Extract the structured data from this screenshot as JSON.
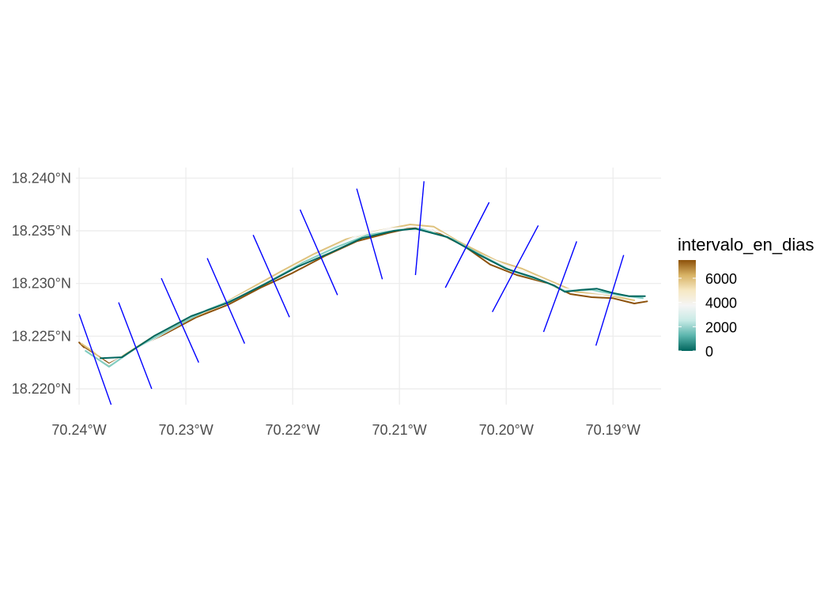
{
  "chart_data": {
    "type": "map",
    "title": "",
    "x_axis": {
      "range_deg_w": [
        70.2403,
        70.1855
      ],
      "ticks": [
        {
          "value": 70.24,
          "label": "70.24°W"
        },
        {
          "value": 70.23,
          "label": "70.23°W"
        },
        {
          "value": 70.22,
          "label": "70.22°W"
        },
        {
          "value": 70.21,
          "label": "70.21°W"
        },
        {
          "value": 70.2,
          "label": "70.20°W"
        },
        {
          "value": 70.19,
          "label": "70.19°W"
        }
      ]
    },
    "y_axis": {
      "range_deg_n": [
        18.2185,
        18.241
      ],
      "ticks": [
        {
          "value": 18.22,
          "label": "18.220°N"
        },
        {
          "value": 18.225,
          "label": "18.225°N"
        },
        {
          "value": 18.23,
          "label": "18.230°N"
        },
        {
          "value": 18.235,
          "label": "18.235°N"
        },
        {
          "value": 18.24,
          "label": "18.240°N"
        }
      ]
    },
    "grid": true,
    "legend": {
      "title": "intervalo_en_dias",
      "position": "right",
      "range": [
        0,
        7500
      ],
      "ticks": [
        {
          "value": 0,
          "label": "0"
        },
        {
          "value": 2000,
          "label": "2000"
        },
        {
          "value": 4000,
          "label": "4000"
        },
        {
          "value": 6000,
          "label": "6000"
        }
      ],
      "colors": [
        "#01665e",
        "#5ab4ac",
        "#c7eae5",
        "#f5f5f5",
        "#f6e8c3",
        "#d8b365",
        "#8c510a"
      ]
    },
    "shorelines": [
      {
        "value": 7000,
        "color": "#8c510a",
        "points": [
          [
            70.24,
            18.2244
          ],
          [
            70.2395,
            18.2239
          ],
          [
            70.2385,
            18.2233
          ],
          [
            70.2372,
            18.2224
          ],
          [
            70.236,
            18.223
          ],
          [
            70.2345,
            18.224
          ],
          [
            70.232,
            18.2252
          ],
          [
            70.229,
            18.2268
          ],
          [
            70.226,
            18.228
          ],
          [
            70.223,
            18.2296
          ],
          [
            70.22,
            18.231
          ],
          [
            70.217,
            18.2326
          ],
          [
            70.214,
            18.234
          ],
          [
            70.211,
            18.2348
          ],
          [
            70.2088,
            18.2353
          ],
          [
            70.2068,
            18.235
          ],
          [
            70.204,
            18.2336
          ],
          [
            70.2015,
            18.2318
          ],
          [
            70.199,
            18.2308
          ],
          [
            70.196,
            18.23
          ],
          [
            70.194,
            18.229
          ],
          [
            70.192,
            18.2287
          ],
          [
            70.19,
            18.2286
          ],
          [
            70.188,
            18.2281
          ],
          [
            70.1868,
            18.2283
          ]
        ]
      },
      {
        "value": 5500,
        "color": "#dfc27d",
        "points": [
          [
            70.2398,
            18.2243
          ],
          [
            70.2388,
            18.2236
          ],
          [
            70.2372,
            18.2222
          ],
          [
            70.2358,
            18.2232
          ],
          [
            70.233,
            18.225
          ],
          [
            70.23,
            18.2265
          ],
          [
            70.227,
            18.2278
          ],
          [
            70.224,
            18.2295
          ],
          [
            70.221,
            18.2312
          ],
          [
            70.218,
            18.2328
          ],
          [
            70.215,
            18.2342
          ],
          [
            70.212,
            18.235
          ],
          [
            70.209,
            18.2356
          ],
          [
            70.2068,
            18.2354
          ],
          [
            70.2045,
            18.234
          ],
          [
            70.201,
            18.2322
          ],
          [
            70.1985,
            18.2314
          ],
          [
            70.196,
            18.2303
          ],
          [
            70.1935,
            18.2292
          ],
          [
            70.191,
            18.229
          ],
          [
            70.188,
            18.2284
          ]
        ]
      },
      {
        "value": 4500,
        "color": "#f5f5f5",
        "points": [
          [
            70.2395,
            18.2238
          ],
          [
            70.2372,
            18.2223
          ],
          [
            70.235,
            18.2236
          ],
          [
            70.232,
            18.2253
          ],
          [
            70.229,
            18.227
          ],
          [
            70.226,
            18.2283
          ],
          [
            70.223,
            18.2299
          ],
          [
            70.22,
            18.2315
          ],
          [
            70.217,
            18.2331
          ],
          [
            70.214,
            18.2345
          ],
          [
            70.211,
            18.2352
          ],
          [
            70.2085,
            18.2354
          ],
          [
            70.206,
            18.2348
          ],
          [
            70.203,
            18.233
          ],
          [
            70.2,
            18.2317
          ],
          [
            70.197,
            18.2306
          ],
          [
            70.1945,
            18.2295
          ],
          [
            70.1915,
            18.2291
          ],
          [
            70.1885,
            18.2287
          ]
        ]
      },
      {
        "value": 2500,
        "color": "#80cdc1",
        "points": [
          [
            70.2394,
            18.2236
          ],
          [
            70.2372,
            18.2221
          ],
          [
            70.2345,
            18.224
          ],
          [
            70.231,
            18.2259
          ],
          [
            70.228,
            18.2275
          ],
          [
            70.225,
            18.2287
          ],
          [
            70.222,
            18.2303
          ],
          [
            70.219,
            18.232
          ],
          [
            70.216,
            18.2334
          ],
          [
            70.213,
            18.2346
          ],
          [
            70.21,
            18.2351
          ],
          [
            70.208,
            18.2352
          ],
          [
            70.205,
            18.2342
          ],
          [
            70.202,
            18.2325
          ],
          [
            70.1995,
            18.2312
          ],
          [
            70.1965,
            18.2302
          ],
          [
            70.1945,
            18.2293
          ],
          [
            70.192,
            18.2294
          ],
          [
            70.1895,
            18.2289
          ],
          [
            70.1872,
            18.2286
          ]
        ]
      },
      {
        "value": 500,
        "color": "#01665e",
        "points": [
          [
            70.238,
            18.2229
          ],
          [
            70.236,
            18.223
          ],
          [
            70.233,
            18.225
          ],
          [
            70.2295,
            18.2269
          ],
          [
            70.226,
            18.2282
          ],
          [
            70.2225,
            18.23
          ],
          [
            70.2195,
            18.2316
          ],
          [
            70.2165,
            18.2329
          ],
          [
            70.2135,
            18.2343
          ],
          [
            70.2105,
            18.235
          ],
          [
            70.2085,
            18.2352
          ],
          [
            70.2055,
            18.2344
          ],
          [
            70.2025,
            18.2327
          ],
          [
            70.2,
            18.2314
          ],
          [
            70.1975,
            18.2306
          ],
          [
            70.1955,
            18.2298
          ],
          [
            70.1945,
            18.2292
          ],
          [
            70.193,
            18.2294
          ],
          [
            70.1915,
            18.2295
          ],
          [
            70.19,
            18.2291
          ],
          [
            70.1885,
            18.2288
          ],
          [
            70.187,
            18.2288
          ]
        ]
      }
    ],
    "transects": [
      [
        [
          70.24,
          18.2271
        ],
        [
          70.237,
          18.2185
        ]
      ],
      [
        [
          70.2363,
          18.2282
        ],
        [
          70.2332,
          18.22
        ]
      ],
      [
        [
          70.2323,
          18.2305
        ],
        [
          70.2288,
          18.2225
        ]
      ],
      [
        [
          70.228,
          18.2324
        ],
        [
          70.2245,
          18.2243
        ]
      ],
      [
        [
          70.2237,
          18.2346
        ],
        [
          70.2203,
          18.2268
        ]
      ],
      [
        [
          70.2193,
          18.237
        ],
        [
          70.2158,
          18.2289
        ]
      ],
      [
        [
          70.214,
          18.239
        ],
        [
          70.2116,
          18.2304
        ]
      ],
      [
        [
          70.2077,
          18.2397
        ],
        [
          70.2085,
          18.2308
        ]
      ],
      [
        [
          70.2016,
          18.2377
        ],
        [
          70.2057,
          18.2296
        ]
      ],
      [
        [
          70.197,
          18.2355
        ],
        [
          70.2013,
          18.2273
        ]
      ],
      [
        [
          70.1934,
          18.234
        ],
        [
          70.1965,
          18.2254
        ]
      ],
      [
        [
          70.189,
          18.2327
        ],
        [
          70.1916,
          18.2241
        ]
      ]
    ],
    "transect_color": "#0000ff"
  }
}
